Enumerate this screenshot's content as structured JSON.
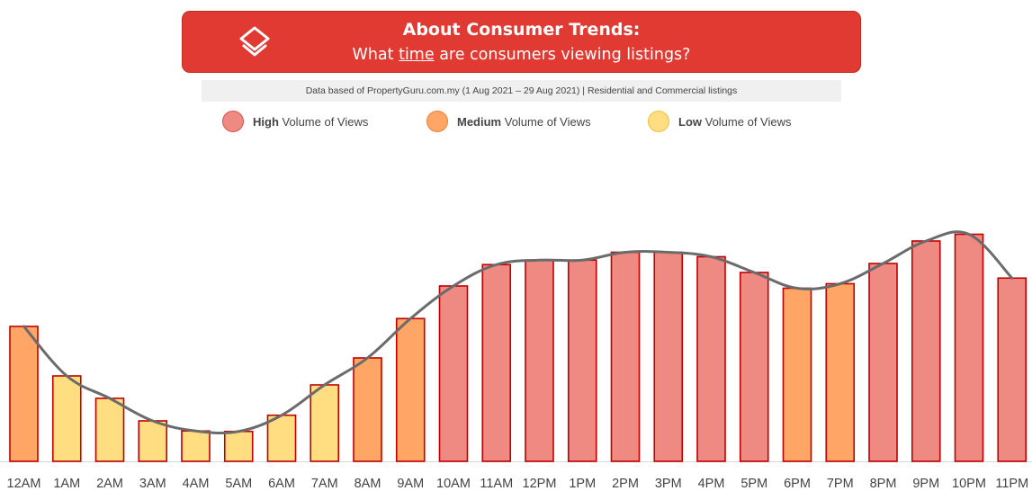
{
  "header": {
    "title": "About Consumer Trends:",
    "subtitle_pre": "What ",
    "subtitle_keyword": "time",
    "subtitle_post": " are consumers viewing listings?",
    "logo_icon": "propertyguru-logo-icon"
  },
  "source_note": "Data based of PropertyGuru.com.my (1 Aug 2021 – 29 Aug 2021) | Residential and Commercial listings",
  "legend": [
    {
      "bold": "High",
      "rest": " Volume of Views",
      "color": "#ee8a82",
      "border": "#d9534f"
    },
    {
      "bold": "Medium",
      "rest": " Volume of Views",
      "color": "#ffa565",
      "border": "#e8823f"
    },
    {
      "bold": "Low",
      "rest": " Volume of Views",
      "color": "#ffdd80",
      "border": "#f0c040"
    }
  ],
  "chart_data": {
    "type": "bar",
    "categories": [
      "12AM",
      "1AM",
      "2AM",
      "3AM",
      "4AM",
      "5AM",
      "6AM",
      "7AM",
      "8AM",
      "9AM",
      "10AM",
      "11AM",
      "12PM",
      "1PM",
      "2PM",
      "3PM",
      "4PM",
      "5PM",
      "6PM",
      "7PM",
      "8PM",
      "9PM",
      "10PM",
      "11PM"
    ],
    "values": [
      60,
      38,
      28,
      18,
      13.5,
      13.3,
      20.5,
      34,
      46,
      63.5,
      78,
      87.5,
      89.5,
      89.5,
      93,
      93,
      91,
      84,
      77,
      79,
      88,
      98,
      101,
      81.5
    ],
    "levels": [
      "medium",
      "low",
      "low",
      "low",
      "low",
      "low",
      "low",
      "low",
      "medium",
      "medium",
      "high",
      "high",
      "high",
      "high",
      "high",
      "high",
      "high",
      "high",
      "medium",
      "medium",
      "high",
      "high",
      "high",
      "high"
    ],
    "line_overlay": true,
    "ylim": [
      0,
      120
    ],
    "level_colors": {
      "high": "#ee8a82",
      "medium": "#ffa565",
      "low": "#ffdd80"
    },
    "bar_border_color": "#c00000",
    "line_color": "#6b6b6b",
    "xlabel": "",
    "ylabel": "",
    "axis_labels_visible": false
  }
}
